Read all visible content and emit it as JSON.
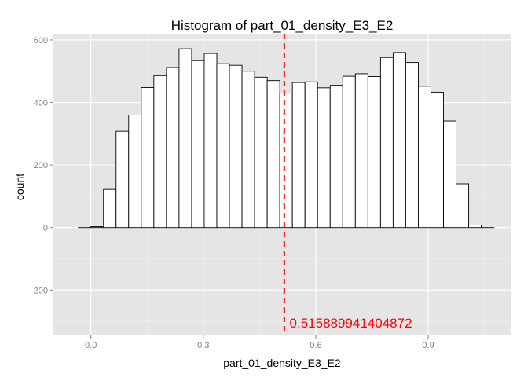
{
  "chart_data": {
    "type": "bar",
    "title": "Histogram of  part_01_density_E3_E2",
    "xlabel": "part_01_density_E3_E2",
    "ylabel": "count",
    "xlim": [
      -0.1,
      1.12
    ],
    "ylim": [
      -345,
      620
    ],
    "x_ticks": [
      0.0,
      0.3,
      0.6,
      0.9
    ],
    "x_tick_labels": [
      "0.0",
      "0.3",
      "0.6",
      "0.9"
    ],
    "y_ticks": [
      -200,
      0,
      200,
      400,
      600
    ],
    "y_tick_labels": [
      "-200",
      "0",
      "200",
      "400",
      "600"
    ],
    "bin_width": 0.0336,
    "bin_starts": [
      -0.0336,
      0.0,
      0.0336,
      0.0672,
      0.1008,
      0.1344,
      0.168,
      0.2016,
      0.2352,
      0.2688,
      0.3024,
      0.336,
      0.3696,
      0.4032,
      0.4368,
      0.4704,
      0.504,
      0.5376,
      0.5712,
      0.6048,
      0.6384,
      0.672,
      0.7056,
      0.7392,
      0.7728,
      0.8064,
      0.84,
      0.8736,
      0.9072,
      0.9408,
      0.9744,
      1.008,
      1.0416
    ],
    "values": [
      0,
      3,
      122,
      308,
      360,
      448,
      486,
      512,
      572,
      534,
      557,
      524,
      519,
      500,
      481,
      470,
      430,
      464,
      466,
      447,
      455,
      484,
      492,
      483,
      544,
      560,
      528,
      452,
      433,
      341,
      140,
      8,
      0
    ],
    "bar_fill": "#ffffff",
    "bar_stroke": "#000000",
    "panel_background": "#e5e5e5",
    "grid_color": "#ffffff",
    "grid": true,
    "vline": {
      "x": 0.515889941404872,
      "color": "#ff0000",
      "style": "dashed"
    },
    "annotation": {
      "text": "0.515889941404872",
      "x": 0.53,
      "y": -305,
      "color": "#ff0000"
    }
  }
}
